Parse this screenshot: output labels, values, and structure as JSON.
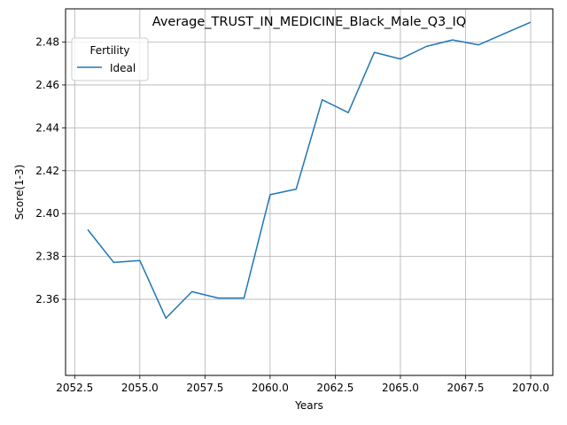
{
  "chart_data": {
    "type": "line",
    "title": "Average_TRUST_IN_MEDICINE_Black_Male_Q3_IQ",
    "xlabel": "Years",
    "ylabel": "Score(1-3)",
    "xlim": [
      2052.15,
      2070.85
    ],
    "ylim": [
      2.3245,
      2.4955
    ],
    "x_ticks": [
      2052.5,
      2055,
      2057.5,
      2060,
      2062.5,
      2065,
      2067.5,
      2070
    ],
    "x_tick_labels": [
      "2052.5",
      "2055.0",
      "2057.5",
      "2060.0",
      "2062.5",
      "2065.0",
      "2067.5",
      "2070.0"
    ],
    "y_ticks": [
      2.36,
      2.38,
      2.4,
      2.42,
      2.44,
      2.46,
      2.48
    ],
    "y_tick_labels": [
      "2.36",
      "2.38",
      "2.40",
      "2.42",
      "2.44",
      "2.46",
      "2.48"
    ],
    "grid": true,
    "legend": {
      "title": "Fertility",
      "position": "upper-left"
    },
    "series": [
      {
        "name": "Ideal",
        "color": "#1f77b4",
        "x": [
          2053,
          2054,
          2055,
          2056,
          2057,
          2058,
          2059,
          2060,
          2061,
          2062,
          2063,
          2064,
          2065,
          2066,
          2067,
          2068,
          2069,
          2070
        ],
        "y": [
          2.3925,
          2.3772,
          2.3781,
          2.3512,
          2.3636,
          2.3606,
          2.3606,
          2.4088,
          2.4114,
          2.4531,
          2.4471,
          2.4752,
          2.4721,
          2.478,
          2.481,
          2.4787,
          2.484,
          2.4893
        ]
      }
    ]
  }
}
